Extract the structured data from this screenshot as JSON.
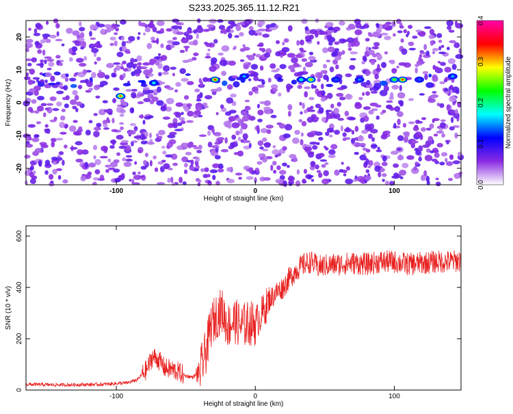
{
  "page_title": "S233.2025.365.11.12.R21",
  "chart_data": [
    {
      "type": "heatmap",
      "xlabel": "Height of straight line (km)",
      "ylabel": "Frequency (Hz)",
      "xlim": [
        -165,
        148
      ],
      "ylim": [
        -25,
        25
      ],
      "xticks": [
        -100,
        0,
        100
      ],
      "yticks": [
        -20,
        -10,
        0,
        10,
        20
      ],
      "colorbar": {
        "label": "Normalized spectral amplitude",
        "range": [
          0,
          0.4
        ],
        "ticks": [
          "0.0",
          "0.1",
          "0.2",
          "0.3",
          "0.4"
        ],
        "colors": [
          "#ffffff",
          "#8a2be2",
          "#0000ff",
          "#00ffff",
          "#00ff00",
          "#ffff00",
          "#ff0000",
          "#ff00aa"
        ]
      },
      "signal_band_hz": [
        5,
        9
      ],
      "hot_spots": [
        {
          "x": -97,
          "y": 2,
          "v": 0.32
        },
        {
          "x": -73,
          "y": 6,
          "v": 0.18
        },
        {
          "x": -29,
          "y": 7,
          "v": 0.34
        },
        {
          "x": -8,
          "y": 8,
          "v": 0.16
        },
        {
          "x": 33,
          "y": 7,
          "v": 0.2
        },
        {
          "x": 40,
          "y": 7,
          "v": 0.3
        },
        {
          "x": 58,
          "y": 7,
          "v": 0.14
        },
        {
          "x": 75,
          "y": 7,
          "v": 0.15
        },
        {
          "x": 100,
          "y": 7,
          "v": 0.25
        },
        {
          "x": 106,
          "y": 7,
          "v": 0.34
        },
        {
          "x": 118,
          "y": 7,
          "v": 0.14
        },
        {
          "x": 142,
          "y": 8,
          "v": 0.16
        }
      ]
    },
    {
      "type": "line",
      "xlabel": "Height of straight line (km)",
      "ylabel": "SNR (10 * v/v)",
      "xlim": [
        -165,
        148
      ],
      "ylim": [
        0,
        640
      ],
      "xticks": [
        -100,
        0,
        100
      ],
      "yticks": [
        0,
        200,
        400,
        600
      ],
      "line_color": "#e8201e",
      "series": [
        {
          "x": [
            -165,
            -140,
            -110,
            -92,
            -85,
            -78,
            -74,
            -70,
            -65,
            -60,
            -55,
            -50,
            -45,
            -40,
            -35,
            -32,
            -28,
            -24,
            -20,
            -15,
            -10,
            -5,
            0,
            5,
            10,
            15,
            20,
            25,
            30,
            35,
            40,
            45,
            50,
            60,
            70,
            80,
            90,
            100,
            110,
            120,
            130,
            140,
            148
          ],
          "y": [
            22,
            20,
            22,
            28,
            40,
            80,
            130,
            120,
            85,
            80,
            70,
            55,
            50,
            70,
            160,
            250,
            290,
            310,
            250,
            270,
            250,
            260,
            260,
            300,
            350,
            380,
            400,
            440,
            470,
            490,
            500,
            480,
            485,
            490,
            495,
            490,
            500,
            500,
            490,
            495,
            500,
            500,
            505
          ]
        }
      ]
    }
  ]
}
